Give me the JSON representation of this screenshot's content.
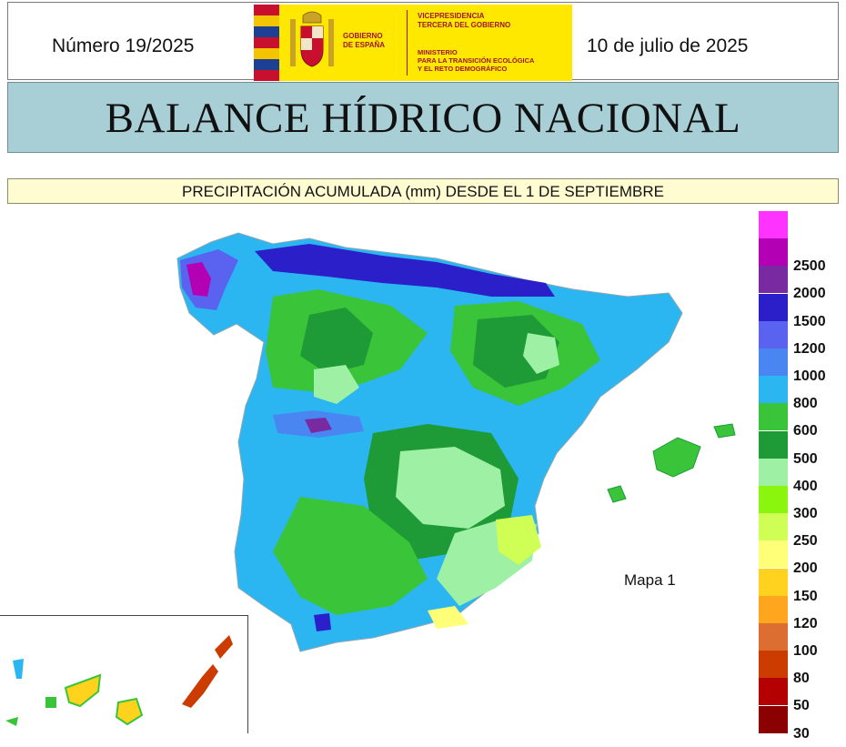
{
  "header": {
    "issue": "Número 19/2025",
    "date": "10 de julio de 2025",
    "logo": {
      "government": "GOBIERNO\nDE ESPAÑA",
      "vice_presidency": "VICEPRESIDENCIA\nTERCERA DEL GOBIERNO",
      "ministry": "MINISTERIO\nPARA LA TRANSICIÓN ECOLÓGICA\nY EL RETO DEMOGRÁFICO"
    }
  },
  "title": "BALANCE HÍDRICO NACIONAL",
  "subtitle": "PRECIPITACIÓN ACUMULADA (mm) DESDE EL 1 DE SEPTIEMBRE",
  "map": {
    "label": "Mapa 1",
    "legend": [
      {
        "label": "",
        "color": "#ff33ff"
      },
      {
        "label": "2500",
        "color": "#b400b4"
      },
      {
        "label": "2000",
        "color": "#7a2aa0"
      },
      {
        "label": "1500",
        "color": "#2a1fc8"
      },
      {
        "label": "1200",
        "color": "#5a62f0"
      },
      {
        "label": "1000",
        "color": "#4a86f2"
      },
      {
        "label": "800",
        "color": "#2bb6f2"
      },
      {
        "label": "600",
        "color": "#3ac43a"
      },
      {
        "label": "500",
        "color": "#1e9a36"
      },
      {
        "label": "400",
        "color": "#9ef0a4"
      },
      {
        "label": "300",
        "color": "#8cf50e"
      },
      {
        "label": "250",
        "color": "#cfff55"
      },
      {
        "label": "200",
        "color": "#ffff78"
      },
      {
        "label": "150",
        "color": "#ffd21e"
      },
      {
        "label": "120",
        "color": "#ffa51e"
      },
      {
        "label": "100",
        "color": "#dd6e32"
      },
      {
        "label": "80",
        "color": "#cc3c00"
      },
      {
        "label": "50",
        "color": "#b40000"
      },
      {
        "label": "30",
        "color": "#8b0000"
      }
    ]
  }
}
